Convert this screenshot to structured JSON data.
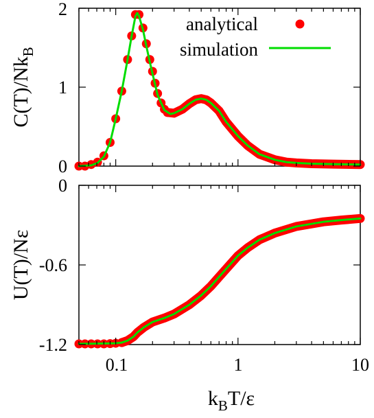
{
  "chart_data": [
    {
      "type": "scatter",
      "panel": "top",
      "xscale": "log",
      "xlim": [
        0.05,
        10
      ],
      "ylim": [
        0,
        2
      ],
      "ylabel": "C(T)/Nk",
      "ylabel_sub": "B",
      "yticks": [
        "0",
        "1",
        "2"
      ],
      "legend": {
        "placement": "top-right",
        "entries": [
          {
            "name": "analytical",
            "marker": "circle",
            "color": "#ff0000"
          },
          {
            "name": "simulation",
            "marker": "line",
            "color": "#00dd00"
          }
        ]
      },
      "series": [
        {
          "name": "analytical",
          "style": "points",
          "color": "#ff0000",
          "points": [
            [
              0.05,
              0.0
            ],
            [
              0.056,
              0.0
            ],
            [
              0.063,
              0.02
            ],
            [
              0.071,
              0.05
            ],
            [
              0.08,
              0.13
            ],
            [
              0.09,
              0.3
            ],
            [
              0.1,
              0.6
            ],
            [
              0.112,
              0.95
            ],
            [
              0.125,
              1.35
            ],
            [
              0.135,
              1.65
            ],
            [
              0.145,
              1.92
            ],
            [
              0.155,
              1.92
            ],
            [
              0.167,
              1.75
            ],
            [
              0.178,
              1.55
            ],
            [
              0.19,
              1.35
            ],
            [
              0.2,
              1.2
            ],
            [
              0.21,
              1.05
            ],
            [
              0.22,
              0.92
            ],
            [
              0.235,
              0.8
            ],
            [
              0.25,
              0.72
            ],
            [
              0.265,
              0.68
            ]
          ]
        },
        {
          "name": "analytical-curve",
          "style": "thick-line",
          "color": "#ff0000",
          "points": [
            [
              0.265,
              0.68
            ],
            [
              0.3,
              0.67
            ],
            [
              0.35,
              0.72
            ],
            [
              0.4,
              0.79
            ],
            [
              0.45,
              0.84
            ],
            [
              0.5,
              0.855
            ],
            [
              0.55,
              0.84
            ],
            [
              0.6,
              0.8
            ],
            [
              0.7,
              0.7
            ],
            [
              0.8,
              0.56
            ],
            [
              1.0,
              0.38
            ],
            [
              1.2,
              0.26
            ],
            [
              1.5,
              0.15
            ],
            [
              2.0,
              0.08
            ],
            [
              2.5,
              0.05
            ],
            [
              3.0,
              0.04
            ],
            [
              4.0,
              0.03
            ],
            [
              6.0,
              0.025
            ],
            [
              10.0,
              0.02
            ]
          ]
        },
        {
          "name": "simulation",
          "style": "line",
          "color": "#00dd00",
          "points": [
            [
              0.05,
              0.0
            ],
            [
              0.063,
              0.01
            ],
            [
              0.071,
              0.04
            ],
            [
              0.08,
              0.12
            ],
            [
              0.09,
              0.3
            ],
            [
              0.1,
              0.6
            ],
            [
              0.112,
              0.95
            ],
            [
              0.125,
              1.35
            ],
            [
              0.135,
              1.65
            ],
            [
              0.145,
              1.9
            ],
            [
              0.15,
              1.94
            ],
            [
              0.155,
              1.9
            ],
            [
              0.167,
              1.73
            ],
            [
              0.178,
              1.52
            ],
            [
              0.19,
              1.32
            ],
            [
              0.2,
              1.17
            ],
            [
              0.22,
              0.9
            ],
            [
              0.25,
              0.71
            ],
            [
              0.28,
              0.66
            ],
            [
              0.3,
              0.67
            ],
            [
              0.35,
              0.72
            ],
            [
              0.4,
              0.79
            ],
            [
              0.45,
              0.84
            ],
            [
              0.5,
              0.855
            ],
            [
              0.55,
              0.84
            ],
            [
              0.6,
              0.8
            ],
            [
              0.7,
              0.7
            ],
            [
              0.8,
              0.56
            ],
            [
              1.0,
              0.38
            ],
            [
              1.2,
              0.26
            ],
            [
              1.5,
              0.15
            ],
            [
              2.0,
              0.08
            ],
            [
              2.5,
              0.05
            ],
            [
              3.0,
              0.04
            ],
            [
              4.0,
              0.03
            ],
            [
              6.0,
              0.025
            ],
            [
              10.0,
              0.02
            ]
          ]
        }
      ]
    },
    {
      "type": "scatter",
      "panel": "bottom",
      "xscale": "log",
      "xlim": [
        0.05,
        10
      ],
      "ylim": [
        -1.2,
        0
      ],
      "ylabel": "U(T)/Nε",
      "xlabel": "k",
      "xlabel_sub": "B",
      "xlabel_rest": "T/ε",
      "yticks": [
        "-1.2",
        "-0.6",
        "0"
      ],
      "xticks": [
        "0.1",
        "1",
        "10"
      ],
      "series": [
        {
          "name": "analytical",
          "style": "points",
          "color": "#ff0000",
          "points": [
            [
              0.05,
              -1.195
            ],
            [
              0.056,
              -1.195
            ],
            [
              0.063,
              -1.195
            ],
            [
              0.071,
              -1.195
            ],
            [
              0.08,
              -1.195
            ],
            [
              0.09,
              -1.193
            ],
            [
              0.1,
              -1.19
            ],
            [
              0.112,
              -1.185
            ]
          ]
        },
        {
          "name": "analytical-curve",
          "style": "thick-line",
          "color": "#ff0000",
          "points": [
            [
              0.112,
              -1.185
            ],
            [
              0.125,
              -1.17
            ],
            [
              0.14,
              -1.14
            ],
            [
              0.15,
              -1.11
            ],
            [
              0.17,
              -1.07
            ],
            [
              0.2,
              -1.03
            ],
            [
              0.25,
              -1.0
            ],
            [
              0.3,
              -0.97
            ],
            [
              0.4,
              -0.9
            ],
            [
              0.5,
              -0.83
            ],
            [
              0.6,
              -0.76
            ],
            [
              0.7,
              -0.69
            ],
            [
              0.8,
              -0.63
            ],
            [
              1.0,
              -0.53
            ],
            [
              1.2,
              -0.47
            ],
            [
              1.5,
              -0.41
            ],
            [
              2.0,
              -0.36
            ],
            [
              3.0,
              -0.31
            ],
            [
              5.0,
              -0.275
            ],
            [
              7.0,
              -0.262
            ],
            [
              10.0,
              -0.25
            ]
          ]
        },
        {
          "name": "simulation",
          "style": "line",
          "color": "#00dd00",
          "points": [
            [
              0.05,
              -1.195
            ],
            [
              0.1,
              -1.19
            ],
            [
              0.112,
              -1.185
            ],
            [
              0.125,
              -1.17
            ],
            [
              0.14,
              -1.14
            ],
            [
              0.15,
              -1.11
            ],
            [
              0.17,
              -1.07
            ],
            [
              0.2,
              -1.03
            ],
            [
              0.25,
              -1.0
            ],
            [
              0.3,
              -0.97
            ],
            [
              0.4,
              -0.9
            ],
            [
              0.5,
              -0.83
            ],
            [
              0.6,
              -0.76
            ],
            [
              0.7,
              -0.69
            ],
            [
              0.8,
              -0.63
            ],
            [
              1.0,
              -0.53
            ],
            [
              1.2,
              -0.47
            ],
            [
              1.5,
              -0.41
            ],
            [
              2.0,
              -0.36
            ],
            [
              3.0,
              -0.31
            ],
            [
              5.0,
              -0.275
            ],
            [
              7.0,
              -0.262
            ],
            [
              10.0,
              -0.25
            ]
          ]
        }
      ]
    }
  ]
}
